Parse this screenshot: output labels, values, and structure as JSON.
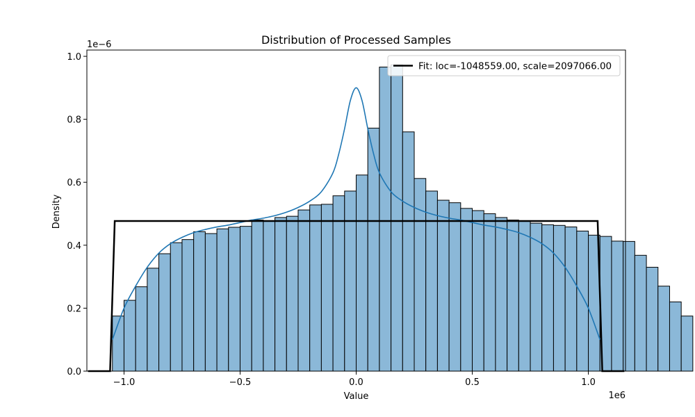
{
  "chart_data": {
    "type": "bar",
    "title": "Distribution of Processed Samples",
    "xlabel": "Value",
    "ylabel": "Density",
    "x_offset_label": "1e6",
    "y_offset_label": "1e−6",
    "xlim": [
      -1.16,
      1.16
    ],
    "ylim": [
      0,
      1.02
    ],
    "x_scale_label_units": "1e6",
    "y_units": "1e-6",
    "xticks": [
      -1.0,
      -0.5,
      0.0,
      0.5,
      1.0
    ],
    "xtick_labels": [
      "−1.0",
      "−0.5",
      "0.0",
      "0.5",
      "1.0"
    ],
    "yticks": [
      0.0,
      0.2,
      0.4,
      0.6,
      0.8,
      1.0
    ],
    "ytick_labels": [
      "0.0",
      "0.2",
      "0.4",
      "0.6",
      "0.8",
      "1.0"
    ],
    "grid": false,
    "legend": {
      "placement": "top-right",
      "entries": [
        {
          "label": "Fit: loc=-1048559.00, scale=2097066.00",
          "color": "#000000"
        }
      ]
    },
    "histogram": {
      "bin_start": -1.05,
      "bin_width": 0.05,
      "fill_color": "#8bb8d8",
      "edge_color": "#000000",
      "values": [
        0.175,
        0.225,
        0.268,
        0.327,
        0.373,
        0.408,
        0.418,
        0.443,
        0.437,
        0.452,
        0.457,
        0.46,
        0.48,
        0.478,
        0.488,
        0.492,
        0.512,
        0.528,
        0.53,
        0.557,
        0.572,
        0.623,
        0.772,
        0.966,
        0.973,
        0.76,
        0.612,
        0.572,
        0.543,
        0.535,
        0.517,
        0.51,
        0.5,
        0.488,
        0.48,
        0.478,
        0.47,
        0.465,
        0.463,
        0.458,
        0.445,
        0.432,
        0.428,
        0.413,
        0.412,
        0.368,
        0.33,
        0.27,
        0.22,
        0.175
      ]
    },
    "series": [
      {
        "kind": "kde",
        "color": "#1f77b4",
        "x": [
          -1.05,
          -1.0,
          -0.95,
          -0.9,
          -0.85,
          -0.8,
          -0.75,
          -0.7,
          -0.65,
          -0.6,
          -0.55,
          -0.5,
          -0.45,
          -0.4,
          -0.35,
          -0.3,
          -0.25,
          -0.2,
          -0.15,
          -0.1,
          -0.075,
          -0.05,
          -0.025,
          0.0,
          0.025,
          0.05,
          0.075,
          0.1,
          0.15,
          0.2,
          0.25,
          0.3,
          0.35,
          0.4,
          0.45,
          0.5,
          0.55,
          0.6,
          0.65,
          0.7,
          0.75,
          0.8,
          0.85,
          0.9,
          0.95,
          1.0,
          1.05
        ],
        "y": [
          0.1,
          0.2,
          0.27,
          0.33,
          0.375,
          0.405,
          0.425,
          0.44,
          0.45,
          0.458,
          0.464,
          0.472,
          0.48,
          0.486,
          0.494,
          0.505,
          0.52,
          0.54,
          0.57,
          0.63,
          0.69,
          0.77,
          0.86,
          0.9,
          0.86,
          0.77,
          0.69,
          0.63,
          0.57,
          0.54,
          0.52,
          0.505,
          0.494,
          0.486,
          0.48,
          0.472,
          0.464,
          0.458,
          0.45,
          0.44,
          0.425,
          0.405,
          0.375,
          0.33,
          0.27,
          0.2,
          0.1
        ]
      },
      {
        "kind": "fit",
        "color": "#000000",
        "x": [
          -1.155,
          -1.06,
          -1.04,
          1.04,
          1.06,
          1.155
        ],
        "y": [
          0.0,
          0.0,
          0.477,
          0.477,
          0.0,
          0.0
        ]
      }
    ]
  }
}
